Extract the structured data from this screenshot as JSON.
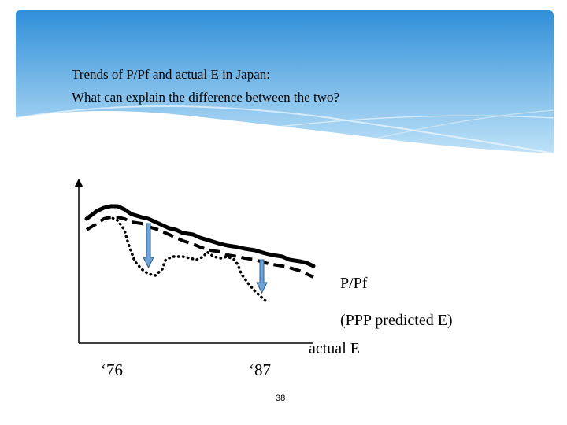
{
  "slide": {
    "title_line_1": "Trends of P/Pf and actual  E in Japan:",
    "title_line_2": "What can explain the difference between the two?",
    "page_number": "38"
  },
  "colors": {
    "header_top": "#2f8fd8",
    "header_bottom": "#bfe2f8",
    "arrow_fill": "#6ea3d6",
    "arrow_stroke": "#2e5f8e",
    "line": "#000000"
  },
  "chart_data": {
    "type": "line",
    "x_tick_labels": [
      "‘76",
      "‘87"
    ],
    "series": [
      {
        "name": "P/Pf",
        "style": "solid",
        "points": [
          [
            0,
            79
          ],
          [
            3,
            84
          ],
          [
            5,
            86
          ],
          [
            7,
            87
          ],
          [
            9,
            87
          ],
          [
            11,
            85
          ],
          [
            13,
            82
          ],
          [
            16,
            80
          ],
          [
            18,
            79
          ],
          [
            21,
            76
          ],
          [
            24,
            73
          ],
          [
            26,
            72
          ],
          [
            28,
            70
          ],
          [
            31,
            69
          ],
          [
            33,
            67
          ],
          [
            36,
            65
          ],
          [
            39,
            63
          ],
          [
            41,
            62
          ],
          [
            44,
            61
          ],
          [
            46,
            60
          ],
          [
            49,
            59
          ],
          [
            52,
            57
          ],
          [
            54,
            56
          ],
          [
            57,
            55
          ],
          [
            59,
            53
          ],
          [
            62,
            52
          ],
          [
            64,
            51
          ],
          [
            66,
            49
          ]
        ]
      },
      {
        "name": "(PPP predicted E)",
        "style": "dashed",
        "points": [
          [
            0,
            72
          ],
          [
            3,
            76
          ],
          [
            5,
            79
          ],
          [
            7,
            80
          ],
          [
            9,
            80
          ],
          [
            11,
            79
          ],
          [
            13,
            77
          ],
          [
            16,
            76
          ],
          [
            18,
            74
          ],
          [
            21,
            72
          ],
          [
            24,
            69
          ],
          [
            26,
            67
          ],
          [
            28,
            65
          ],
          [
            31,
            63
          ],
          [
            33,
            61
          ],
          [
            36,
            59
          ],
          [
            39,
            58
          ],
          [
            41,
            56
          ],
          [
            44,
            55
          ],
          [
            46,
            54
          ],
          [
            49,
            53
          ],
          [
            52,
            51
          ],
          [
            54,
            50
          ],
          [
            57,
            49
          ],
          [
            59,
            48
          ],
          [
            62,
            46
          ],
          [
            64,
            44
          ],
          [
            66,
            42
          ]
        ]
      },
      {
        "name": "actual E",
        "style": "dotted",
        "points": [
          [
            5,
            79
          ],
          [
            7,
            80
          ],
          [
            9,
            78
          ],
          [
            11,
            72
          ],
          [
            12,
            64
          ],
          [
            13,
            58
          ],
          [
            14,
            52
          ],
          [
            16,
            47
          ],
          [
            18,
            44
          ],
          [
            20,
            43
          ],
          [
            21,
            45
          ],
          [
            22,
            47
          ],
          [
            23,
            53
          ],
          [
            25,
            55
          ],
          [
            28,
            55
          ],
          [
            30,
            54
          ],
          [
            32,
            53
          ],
          [
            34,
            55
          ],
          [
            35,
            58
          ],
          [
            37,
            55
          ],
          [
            39,
            54
          ],
          [
            41,
            55
          ],
          [
            43,
            53
          ],
          [
            44,
            50
          ],
          [
            45,
            44
          ],
          [
            47,
            38
          ],
          [
            49,
            33
          ],
          [
            51,
            29
          ],
          [
            52,
            27
          ],
          [
            53,
            26
          ]
        ]
      }
    ],
    "annotations": [
      {
        "label": "P/Pf",
        "series": "P/Pf"
      },
      {
        "label": "(PPP predicted E)",
        "series": "(PPP predicted E)"
      },
      {
        "label": "actual E",
        "series": "actual E"
      }
    ],
    "arrows": [
      {
        "x": 18,
        "from": 76,
        "to": 48,
        "direction": "down"
      },
      {
        "x": 51,
        "from": 53,
        "to": 32,
        "direction": "down"
      }
    ],
    "xlim": [
      0,
      66
    ],
    "ylim": [
      0,
      100
    ],
    "xlabel": "",
    "ylabel": "",
    "grid": false,
    "legend": "none"
  }
}
